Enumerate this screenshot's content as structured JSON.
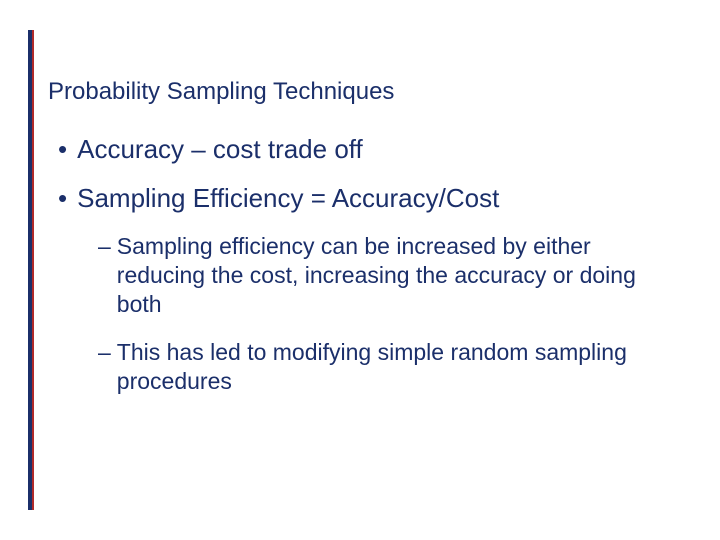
{
  "colors": {
    "title": "#1b2f6a",
    "body": "#1b2f6a",
    "border_blue": "#1b2f6a",
    "border_red": "#b02a2a"
  },
  "title": "Probability Sampling Techniques",
  "bullets": [
    {
      "text": "Accuracy – cost trade off"
    },
    {
      "text": "Sampling Efficiency = Accuracy/Cost"
    }
  ],
  "subs": [
    {
      "text": "Sampling efficiency can be increased by either reducing the cost, increasing the accuracy or doing both"
    },
    {
      "text": "This has led to modifying simple random sampling procedures"
    }
  ]
}
